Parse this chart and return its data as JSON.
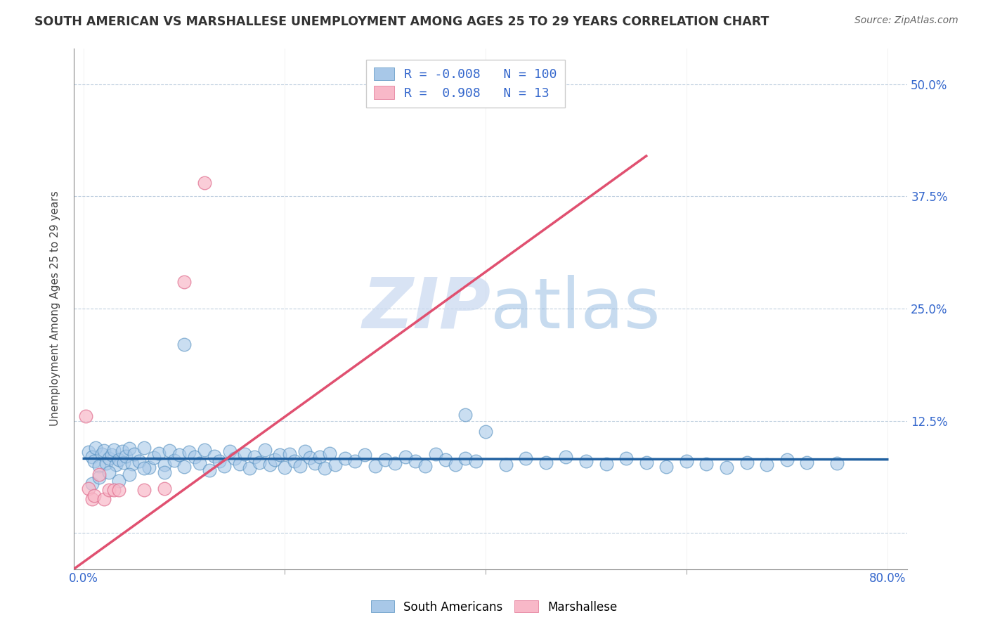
{
  "title": "SOUTH AMERICAN VS MARSHALLESE UNEMPLOYMENT AMONG AGES 25 TO 29 YEARS CORRELATION CHART",
  "source_text": "Source: ZipAtlas.com",
  "ylabel": "Unemployment Among Ages 25 to 29 years",
  "xlim": [
    -0.01,
    0.82
  ],
  "ylim": [
    -0.04,
    0.54
  ],
  "xtick_positions": [
    0.0,
    0.8
  ],
  "xtick_labels": [
    "0.0%",
    "80.0%"
  ],
  "yticks": [
    0.0,
    0.125,
    0.25,
    0.375,
    0.5
  ],
  "ytick_labels": [
    "",
    "12.5%",
    "25.0%",
    "37.5%",
    "50.0%"
  ],
  "grid_yticks": [
    0.0,
    0.125,
    0.25,
    0.375,
    0.5
  ],
  "grid_xticks": [
    0.0,
    0.2,
    0.4,
    0.6,
    0.8
  ],
  "blue_R": -0.008,
  "blue_N": 100,
  "pink_R": 0.908,
  "pink_N": 13,
  "blue_color": "#a8c8e8",
  "blue_edge_color": "#5590c0",
  "pink_color": "#f8b8c8",
  "pink_edge_color": "#e07090",
  "blue_line_color": "#2060a0",
  "pink_line_color": "#e05070",
  "watermark_color": "#c8d8f0",
  "blue_scatter_x": [
    0.005,
    0.008,
    0.01,
    0.012,
    0.015,
    0.018,
    0.02,
    0.022,
    0.025,
    0.028,
    0.03,
    0.032,
    0.035,
    0.038,
    0.04,
    0.042,
    0.045,
    0.048,
    0.05,
    0.055,
    0.06,
    0.065,
    0.07,
    0.075,
    0.08,
    0.085,
    0.09,
    0.095,
    0.1,
    0.105,
    0.11,
    0.115,
    0.12,
    0.125,
    0.13,
    0.135,
    0.14,
    0.145,
    0.15,
    0.155,
    0.16,
    0.165,
    0.17,
    0.175,
    0.18,
    0.185,
    0.19,
    0.195,
    0.2,
    0.205,
    0.21,
    0.215,
    0.22,
    0.225,
    0.23,
    0.235,
    0.24,
    0.245,
    0.25,
    0.26,
    0.27,
    0.28,
    0.29,
    0.3,
    0.31,
    0.32,
    0.33,
    0.34,
    0.35,
    0.36,
    0.37,
    0.38,
    0.39,
    0.4,
    0.42,
    0.44,
    0.46,
    0.48,
    0.5,
    0.52,
    0.54,
    0.56,
    0.58,
    0.6,
    0.62,
    0.64,
    0.66,
    0.68,
    0.7,
    0.72,
    0.008,
    0.015,
    0.025,
    0.035,
    0.045,
    0.06,
    0.08,
    0.1,
    0.38,
    0.75
  ],
  "blue_scatter_y": [
    0.09,
    0.085,
    0.08,
    0.095,
    0.075,
    0.088,
    0.092,
    0.078,
    0.083,
    0.087,
    0.093,
    0.076,
    0.082,
    0.091,
    0.079,
    0.086,
    0.094,
    0.077,
    0.088,
    0.08,
    0.095,
    0.073,
    0.084,
    0.089,
    0.076,
    0.092,
    0.081,
    0.087,
    0.074,
    0.09,
    0.085,
    0.078,
    0.093,
    0.07,
    0.086,
    0.08,
    0.075,
    0.091,
    0.083,
    0.077,
    0.088,
    0.072,
    0.085,
    0.079,
    0.093,
    0.076,
    0.082,
    0.087,
    0.073,
    0.088,
    0.08,
    0.075,
    0.091,
    0.084,
    0.078,
    0.085,
    0.072,
    0.089,
    0.076,
    0.083,
    0.08,
    0.087,
    0.075,
    0.082,
    0.078,
    0.085,
    0.08,
    0.075,
    0.088,
    0.082,
    0.076,
    0.083,
    0.08,
    0.113,
    0.076,
    0.083,
    0.079,
    0.085,
    0.08,
    0.077,
    0.083,
    0.079,
    0.074,
    0.08,
    0.077,
    0.073,
    0.079,
    0.076,
    0.082,
    0.079,
    0.055,
    0.062,
    0.068,
    0.058,
    0.065,
    0.072,
    0.068,
    0.21,
    0.132,
    0.078
  ],
  "pink_scatter_x": [
    0.002,
    0.005,
    0.008,
    0.01,
    0.015,
    0.02,
    0.025,
    0.03,
    0.035,
    0.06,
    0.08,
    0.1,
    0.12
  ],
  "pink_scatter_y": [
    0.13,
    0.05,
    0.038,
    0.042,
    0.065,
    0.038,
    0.048,
    0.048,
    0.048,
    0.048,
    0.05,
    0.28,
    0.39
  ],
  "blue_line_x": [
    0.0,
    0.8
  ],
  "blue_line_y": [
    0.083,
    0.082
  ],
  "pink_line_x": [
    -0.01,
    0.56
  ],
  "pink_line_y": [
    -0.04,
    0.42
  ]
}
